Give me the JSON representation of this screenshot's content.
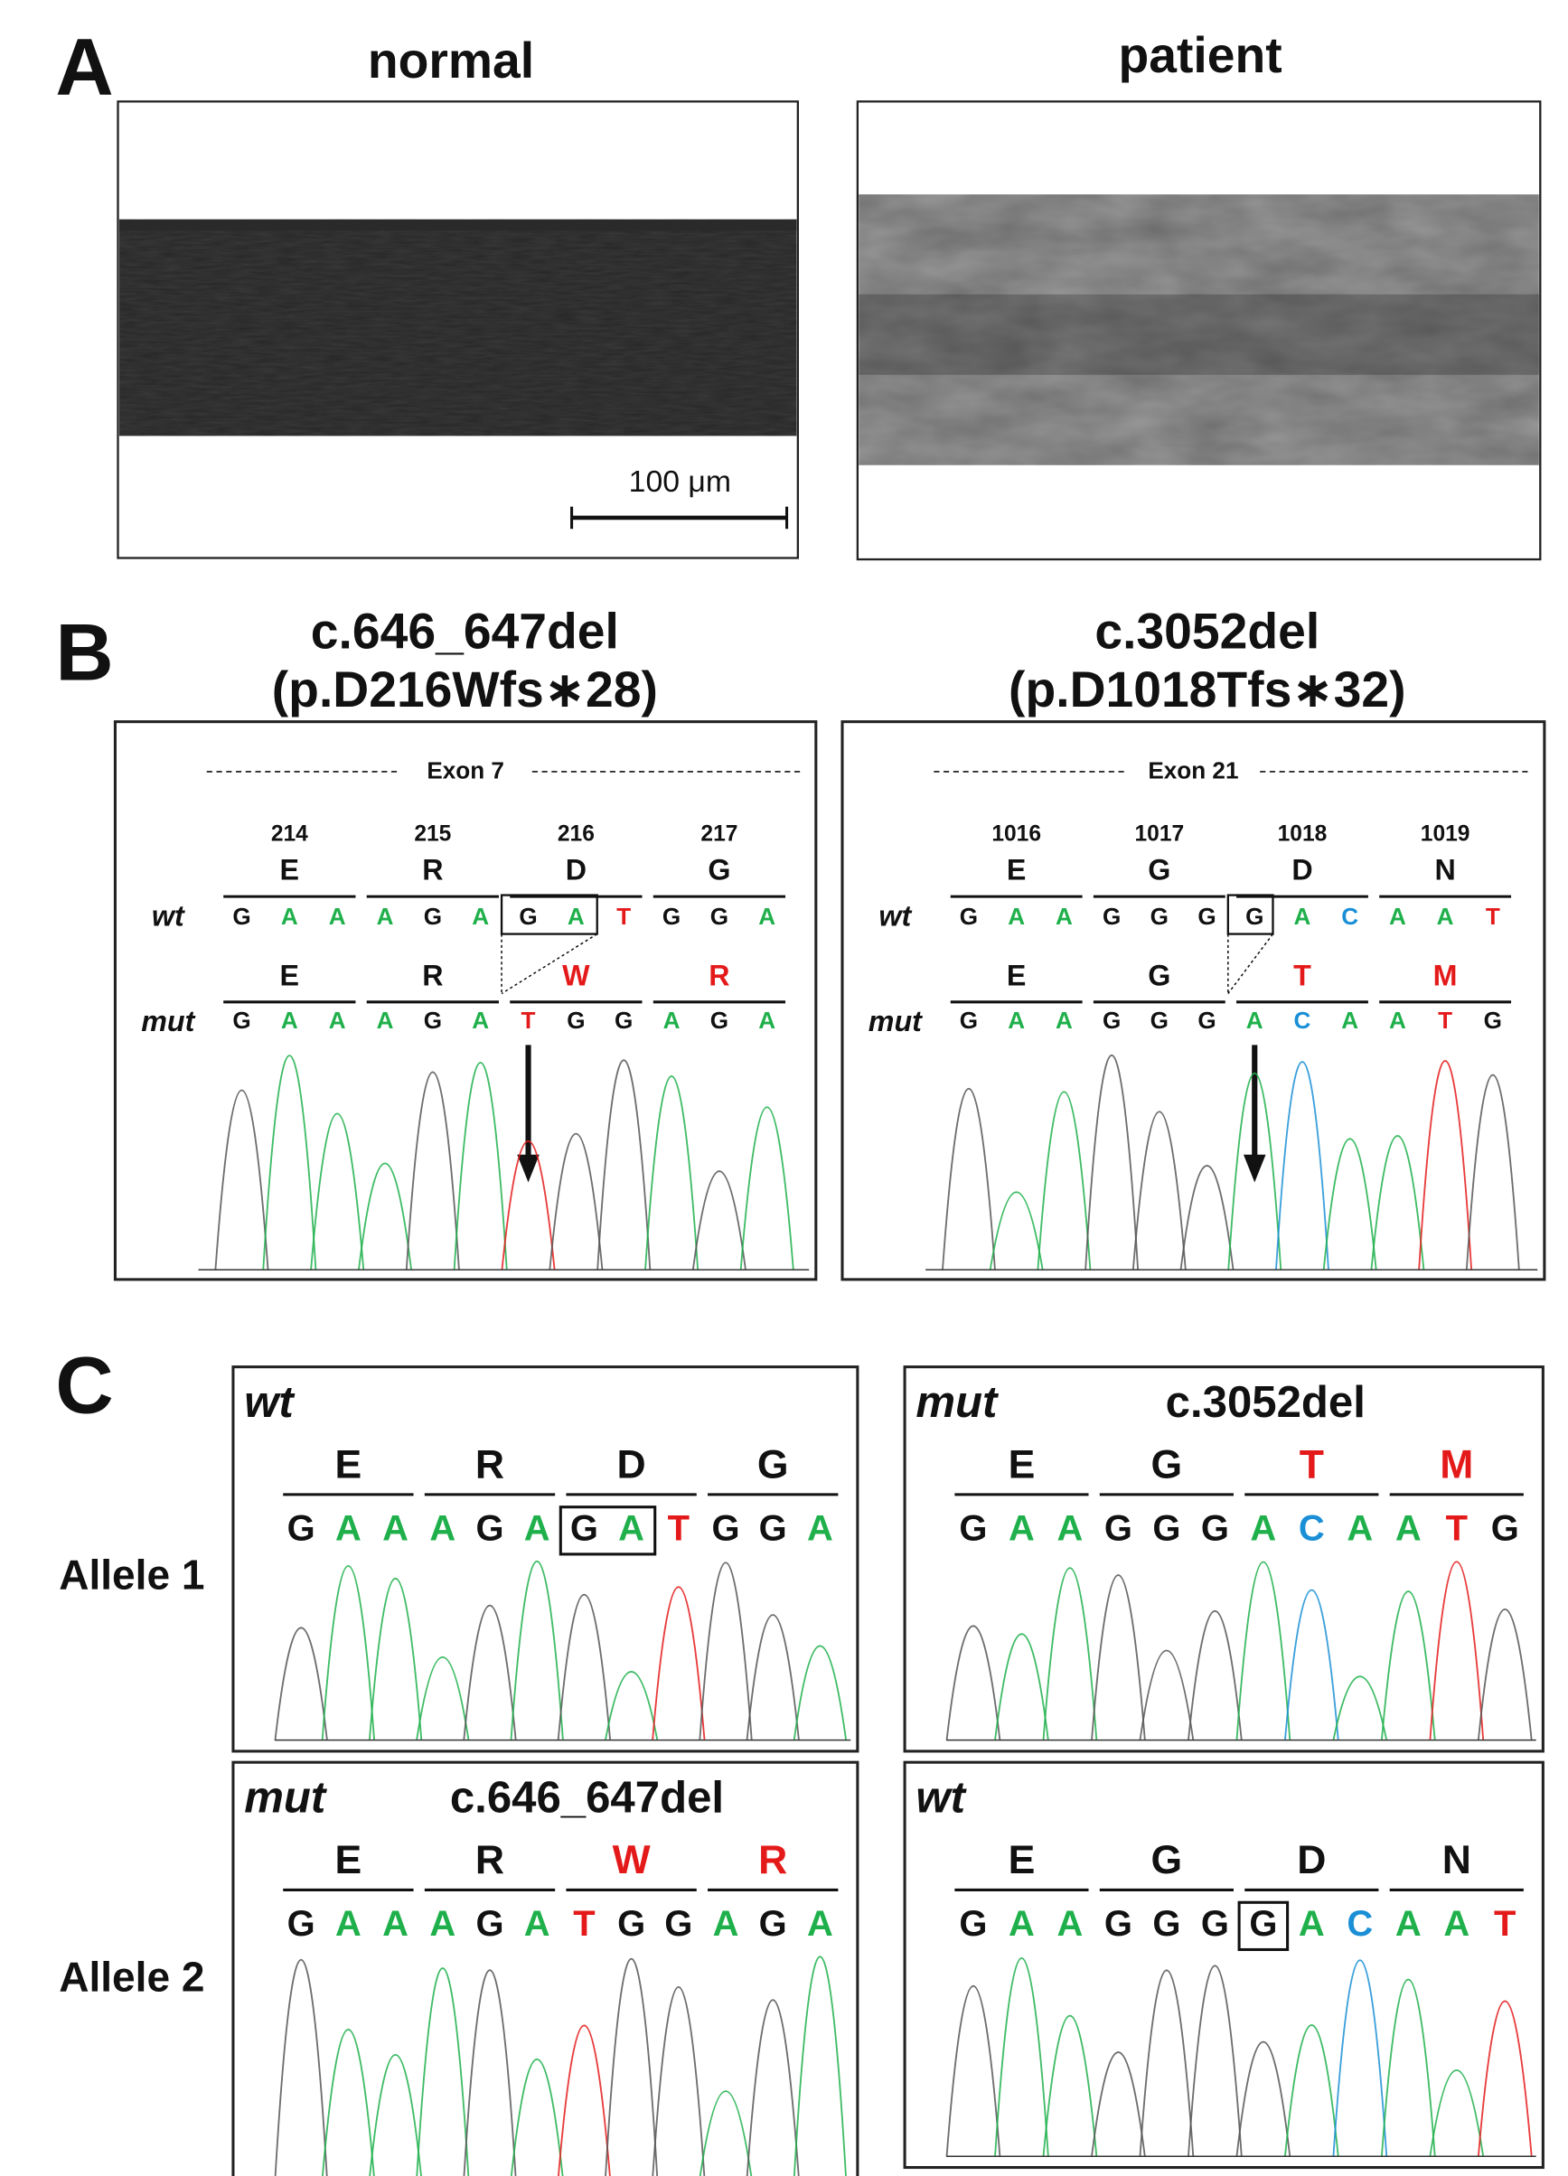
{
  "base_colors": {
    "A": "#1fb04b",
    "G": "#111111",
    "T": "#e41a1a",
    "C": "#1a8fd6"
  },
  "panel_a": {
    "label": "A",
    "normal": {
      "title": "normal",
      "scale_bar": "100 μm"
    },
    "patient": {
      "title": "patient"
    }
  },
  "panel_b": {
    "label": "B",
    "items": [
      {
        "title_line1": "c.646_647del",
        "title_line2": "(p.D216Wfs∗28)",
        "exon": "Exon 7",
        "positions": [
          "214",
          "215",
          "216",
          "217"
        ],
        "wt_label": "wt",
        "wt_aa": [
          "E",
          "R",
          "D",
          "G"
        ],
        "wt_aa_colors": [
          "#111111",
          "#111111",
          "#111111",
          "#111111"
        ],
        "wt_bases": [
          "G",
          "A",
          "A",
          "A",
          "G",
          "A",
          "G",
          "A",
          "T",
          "G",
          "G",
          "A"
        ],
        "mut_label": "mut",
        "mut_aa": [
          "E",
          "R",
          "W",
          "R"
        ],
        "mut_aa_colors": [
          "#111111",
          "#111111",
          "#e41a1a",
          "#e41a1a"
        ],
        "mut_bases": [
          "G",
          "A",
          "A",
          "A",
          "G",
          "A",
          "T",
          "G",
          "G",
          "A",
          "G",
          "A"
        ]
      },
      {
        "title_line1": "c.3052del",
        "title_line2": "(p.D1018Tfs∗32)",
        "exon": "Exon 21",
        "positions": [
          "1016",
          "1017",
          "1018",
          "1019"
        ],
        "wt_label": "wt",
        "wt_aa": [
          "E",
          "G",
          "D",
          "N"
        ],
        "wt_aa_colors": [
          "#111111",
          "#111111",
          "#111111",
          "#111111"
        ],
        "wt_bases": [
          "G",
          "A",
          "A",
          "G",
          "G",
          "G",
          "G",
          "A",
          "C",
          "A",
          "A",
          "T"
        ],
        "mut_label": "mut",
        "mut_aa": [
          "E",
          "G",
          "T",
          "M"
        ],
        "mut_aa_colors": [
          "#111111",
          "#111111",
          "#e41a1a",
          "#e41a1a"
        ],
        "mut_bases": [
          "G",
          "A",
          "A",
          "G",
          "G",
          "G",
          "A",
          "C",
          "A",
          "A",
          "T",
          "G"
        ]
      }
    ]
  },
  "panel_c": {
    "label": "C",
    "allele_labels": [
      "Allele 1",
      "Allele 2"
    ],
    "boxes": [
      {
        "tag": "wt",
        "aa": [
          "E",
          "R",
          "D",
          "G"
        ],
        "aa_colors": [
          "#111111",
          "#111111",
          "#111111",
          "#111111"
        ],
        "bases": [
          "G",
          "A",
          "A",
          "A",
          "G",
          "A",
          "G",
          "A",
          "T",
          "G",
          "G",
          "A"
        ]
      },
      {
        "tag": "mut",
        "title": "c.3052del",
        "aa": [
          "E",
          "G",
          "T",
          "M"
        ],
        "aa_colors": [
          "#111111",
          "#111111",
          "#e41a1a",
          "#e41a1a"
        ],
        "bases": [
          "G",
          "A",
          "A",
          "G",
          "G",
          "G",
          "A",
          "C",
          "A",
          "A",
          "T",
          "G"
        ]
      },
      {
        "tag": "mut",
        "title": "c.646_647del",
        "aa": [
          "E",
          "R",
          "W",
          "R"
        ],
        "aa_colors": [
          "#111111",
          "#111111",
          "#e41a1a",
          "#e41a1a"
        ],
        "bases": [
          "G",
          "A",
          "A",
          "A",
          "G",
          "A",
          "T",
          "G",
          "G",
          "A",
          "G",
          "A"
        ]
      },
      {
        "tag": "wt",
        "aa": [
          "E",
          "G",
          "D",
          "N"
        ],
        "aa_colors": [
          "#111111",
          "#111111",
          "#111111",
          "#111111"
        ],
        "bases": [
          "G",
          "A",
          "A",
          "G",
          "G",
          "G",
          "G",
          "A",
          "C",
          "A",
          "A",
          "T"
        ]
      }
    ]
  }
}
